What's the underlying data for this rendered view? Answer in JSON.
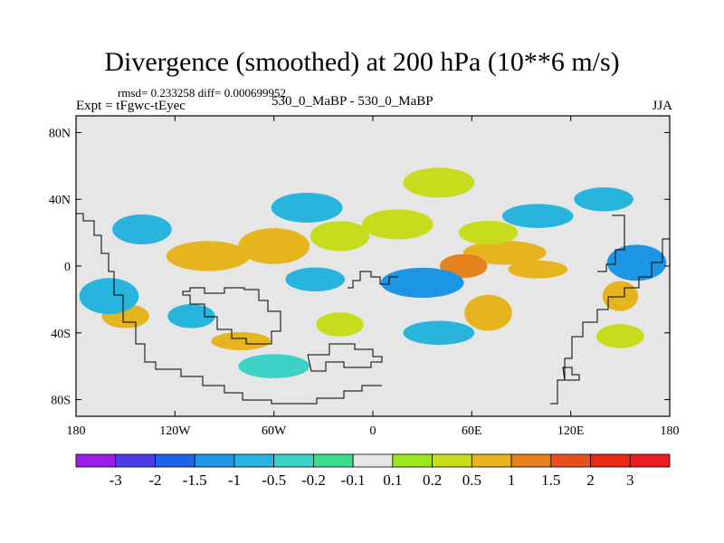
{
  "chart_data": {
    "type": "heatmap",
    "title": "Divergence (smoothed) at 200 hPa (10**6 m/s)",
    "stats": "rmsd= 0.233258 diff= 0.000699952",
    "experiment": "Expt = tFgwc-tEyec",
    "experiments_compared": "530_0_MaBP - 530_0_MaBP",
    "season": "JJA",
    "x_ticks": [
      {
        "value": -180,
        "label": "180"
      },
      {
        "value": -120,
        "label": "120W"
      },
      {
        "value": -60,
        "label": "60W"
      },
      {
        "value": 0,
        "label": "0"
      },
      {
        "value": 60,
        "label": "60E"
      },
      {
        "value": 120,
        "label": "120E"
      },
      {
        "value": 180,
        "label": "180"
      }
    ],
    "y_ticks": [
      {
        "value": 80,
        "label": "80N"
      },
      {
        "value": 40,
        "label": "40N"
      },
      {
        "value": 0,
        "label": "0"
      },
      {
        "value": -40,
        "label": "40S"
      },
      {
        "value": -80,
        "label": "80S"
      }
    ],
    "xlim": [
      -180,
      180
    ],
    "ylim": [
      -90,
      90
    ],
    "colorbar": {
      "labels": [
        "-3",
        "-2",
        "-1.5",
        "-1",
        "-0.5",
        "-0.2",
        "-0.1",
        "0.1",
        "0.2",
        "0.5",
        "1",
        "1.5",
        "2",
        "3"
      ],
      "colors": [
        "#9b1ee6",
        "#4b3ce6",
        "#1e64e6",
        "#1e96e6",
        "#28b4dc",
        "#3cd2c8",
        "#3cdc8c",
        "#e6e6e6",
        "#9be61e",
        "#c8dc1e",
        "#e6b41e",
        "#e6821e",
        "#e6501e",
        "#e62814",
        "#e61e1e"
      ]
    },
    "anomaly_blobs": [
      {
        "lon": -100,
        "lat": 6,
        "rlon": 14,
        "rlat": 5,
        "level": 1
      },
      {
        "lon": -60,
        "lat": 12,
        "rlon": 12,
        "rlat": 6,
        "level": 1
      },
      {
        "lon": -20,
        "lat": 18,
        "rlon": 10,
        "rlat": 5,
        "level": 0.5
      },
      {
        "lon": 15,
        "lat": 25,
        "rlon": 12,
        "rlat": 5,
        "level": 0.5
      },
      {
        "lon": 80,
        "lat": 8,
        "rlon": 14,
        "rlat": 4,
        "level": 1
      },
      {
        "lon": 55,
        "lat": 0,
        "rlon": 8,
        "rlat": 4,
        "level": 1.5
      },
      {
        "lon": 100,
        "lat": -2,
        "rlon": 10,
        "rlat": 3,
        "level": 1
      },
      {
        "lon": 150,
        "lat": -18,
        "rlon": 6,
        "rlat": 5,
        "level": 1
      },
      {
        "lon": 70,
        "lat": -28,
        "rlon": 8,
        "rlat": 6,
        "level": 1
      },
      {
        "lon": -150,
        "lat": -30,
        "rlon": 8,
        "rlat": 4,
        "level": 1
      },
      {
        "lon": -80,
        "lat": -45,
        "rlon": 10,
        "rlat": 3,
        "level": 1
      },
      {
        "lon": 150,
        "lat": -42,
        "rlon": 8,
        "rlat": 4,
        "level": 0.5
      },
      {
        "lon": 40,
        "lat": 50,
        "rlon": 12,
        "rlat": 5,
        "level": 0.5
      },
      {
        "lon": -20,
        "lat": -35,
        "rlon": 8,
        "rlat": 4,
        "level": 0.5
      },
      {
        "lon": 70,
        "lat": 20,
        "rlon": 10,
        "rlat": 4,
        "level": 0.5
      },
      {
        "lon": -35,
        "lat": -8,
        "rlon": 10,
        "rlat": 4,
        "level": -0.5
      },
      {
        "lon": 30,
        "lat": -10,
        "rlon": 14,
        "rlat": 5,
        "level": -1
      },
      {
        "lon": 160,
        "lat": 2,
        "rlon": 10,
        "rlat": 6,
        "level": -1
      },
      {
        "lon": -160,
        "lat": -18,
        "rlon": 10,
        "rlat": 6,
        "level": -0.5
      },
      {
        "lon": -140,
        "lat": 22,
        "rlon": 10,
        "rlat": 5,
        "level": -0.5
      },
      {
        "lon": 100,
        "lat": 30,
        "rlon": 12,
        "rlat": 4,
        "level": -0.5
      },
      {
        "lon": -40,
        "lat": 35,
        "rlon": 12,
        "rlat": 5,
        "level": -0.5
      },
      {
        "lon": 40,
        "lat": -40,
        "rlon": 12,
        "rlat": 4,
        "level": -0.5
      },
      {
        "lon": -110,
        "lat": -30,
        "rlon": 8,
        "rlat": 4,
        "level": -0.5
      },
      {
        "lon": 140,
        "lat": 40,
        "rlon": 10,
        "rlat": 4,
        "level": -0.5
      },
      {
        "lon": -60,
        "lat": -60,
        "rlon": 12,
        "rlat": 4,
        "level": -0.2
      }
    ]
  }
}
